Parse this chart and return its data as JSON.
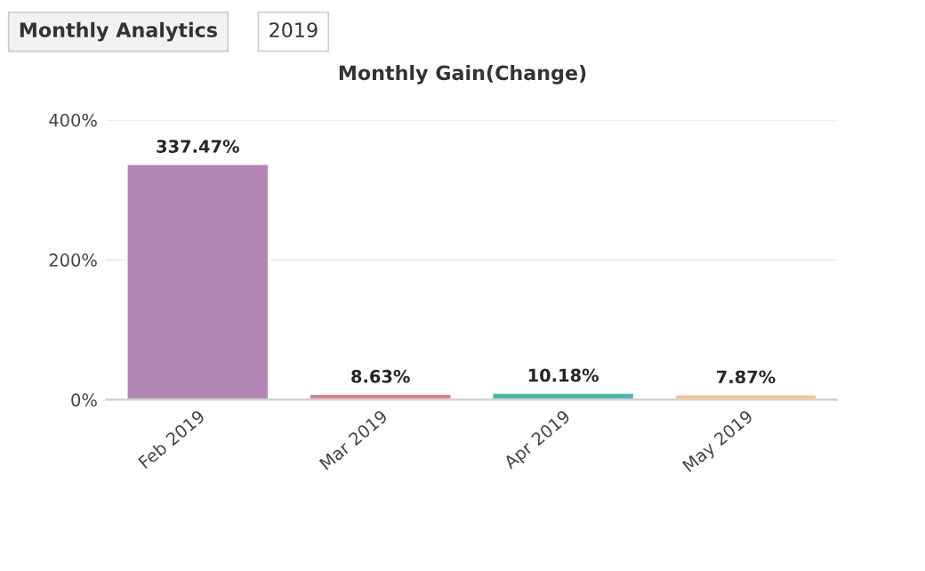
{
  "chart_data": {
    "type": "bar",
    "title": "Monthly Gain(Change)",
    "annotations": [
      "Monthly Analytics",
      "2019"
    ],
    "categories": [
      "Feb 2019",
      "Mar 2019",
      "Apr 2019",
      "May 2019"
    ],
    "values": [
      337.47,
      8.63,
      10.18,
      7.87
    ],
    "colors": [
      "#b386b6",
      "#d9838b",
      "#4fb5ad",
      "#f3c48c"
    ],
    "value_labels": [
      "337.47%",
      "8.63%",
      "10.18%",
      "7.87%"
    ],
    "ylim": [
      0,
      400
    ],
    "yticks": [
      {
        "value": 0,
        "label": "0%"
      },
      {
        "value": 200,
        "label": "200%"
      },
      {
        "value": 400,
        "label": "400%"
      }
    ],
    "grid": "y",
    "legend": false
  }
}
